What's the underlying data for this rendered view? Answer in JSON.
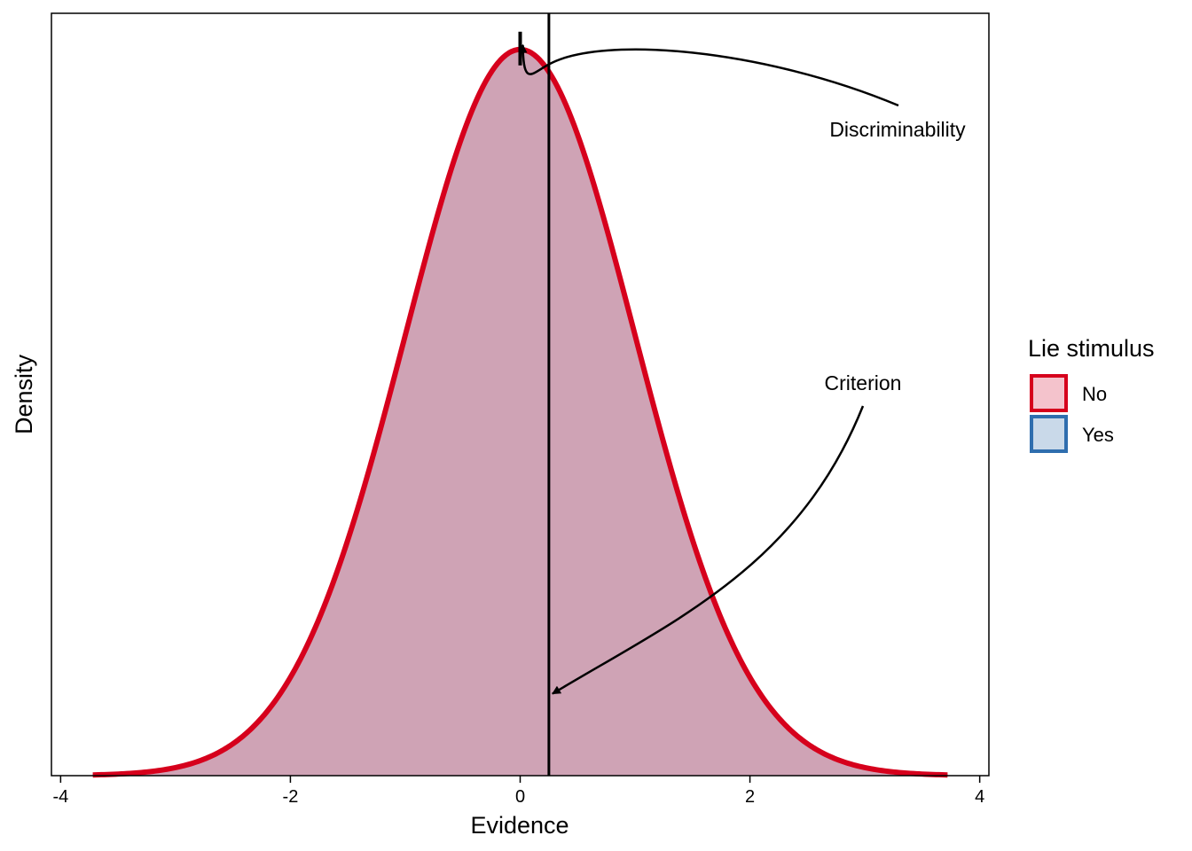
{
  "chart_data": {
    "type": "area",
    "xlabel": "Evidence",
    "ylabel": "Density",
    "xlim": [
      -4.08,
      4.08
    ],
    "ylim": [
      0,
      0.4188
    ],
    "x_ticks": [
      -4,
      -2,
      0,
      2,
      4
    ],
    "x_tick_labels": [
      "-4",
      "-2",
      "0",
      "2",
      "4"
    ],
    "y_ticks_shown": false,
    "grid": false,
    "legend": {
      "title": "Lie stimulus",
      "position": "right",
      "entries": [
        {
          "label": "No",
          "fill": "#F4C3CC",
          "stroke": "#D6001C"
        },
        {
          "label": "Yes",
          "fill": "#C9D9E9",
          "stroke": "#2F6EAE"
        }
      ]
    },
    "series": [
      {
        "name": "No",
        "distribution": "normal",
        "mean": 0,
        "sd": 1,
        "x_range": [
          -3.72,
          3.72
        ],
        "fill": "#CFA3B5",
        "stroke": "#D6001C"
      },
      {
        "name": "Yes",
        "distribution": "normal",
        "mean": 0,
        "sd": 1,
        "x_range": [
          -3.72,
          3.72
        ],
        "fill": "#CFA3B5",
        "stroke": "#2F6EAE"
      }
    ],
    "criterion_x": 0.25,
    "discriminability_mark_x": 0,
    "annotations": [
      {
        "text": "Discriminability",
        "target": "discriminability mark at x = 0"
      },
      {
        "text": "Criterion",
        "target": "criterion line at x = 0.25"
      }
    ]
  }
}
